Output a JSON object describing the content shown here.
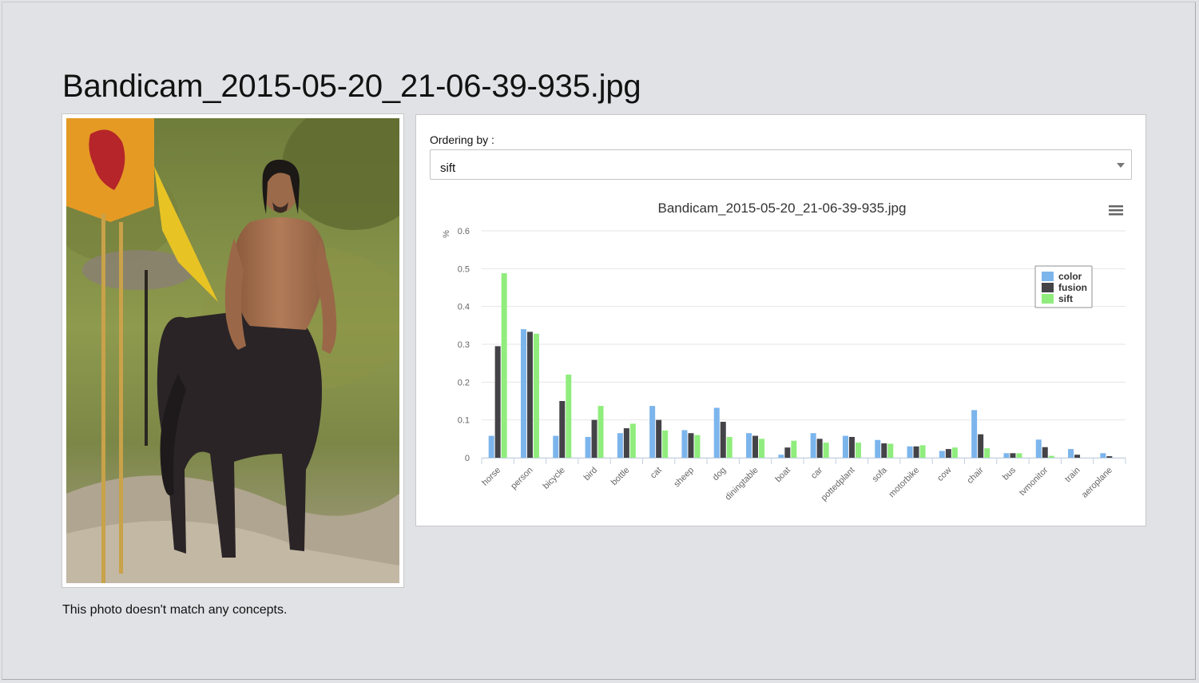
{
  "page": {
    "title": "Bandicam_2015-05-20_21-06-39-935.jpg",
    "no_match_text": "This photo doesn't match any concepts."
  },
  "photo": {
    "alt": "Bandicam_2015-05-20_21-06-39-935.jpg"
  },
  "ordering": {
    "label": "Ordering by :",
    "selected": "sift"
  },
  "chart_menu": {
    "icon": "hamburger-menu-icon"
  },
  "colors": {
    "color": "#7cb5ec",
    "fusion": "#434348",
    "sift": "#90ed7d",
    "grid": "#e6e6e6",
    "axis": "#c0d0e0"
  },
  "chart_data": {
    "type": "bar",
    "title": "Bandicam_2015-05-20_21-06-39-935.jpg",
    "xlabel": "",
    "ylabel": "%",
    "ylim": [
      0,
      0.6
    ],
    "yticks": [
      0,
      0.1,
      0.2,
      0.3,
      0.4,
      0.5,
      0.6
    ],
    "grid": true,
    "legend_position": "top-right",
    "categories": [
      "horse",
      "person",
      "bicycle",
      "bird",
      "bottle",
      "cat",
      "sheep",
      "dog",
      "diningtable",
      "boat",
      "car",
      "pottedplant",
      "sofa",
      "motorbike",
      "cow",
      "chair",
      "bus",
      "tvmonitor",
      "train",
      "aeroplane"
    ],
    "series": [
      {
        "name": "color",
        "color": "#7cb5ec",
        "values": [
          0.058,
          0.34,
          0.058,
          0.055,
          0.065,
          0.137,
          0.073,
          0.132,
          0.065,
          0.008,
          0.065,
          0.058,
          0.047,
          0.03,
          0.018,
          0.126,
          0.012,
          0.048,
          0.023,
          0.012
        ]
      },
      {
        "name": "fusion",
        "color": "#434348",
        "values": [
          0.295,
          0.333,
          0.15,
          0.1,
          0.078,
          0.1,
          0.065,
          0.095,
          0.058,
          0.027,
          0.05,
          0.055,
          0.038,
          0.03,
          0.023,
          0.062,
          0.012,
          0.028,
          0.008,
          0.004
        ]
      },
      {
        "name": "sift",
        "color": "#90ed7d",
        "values": [
          0.488,
          0.328,
          0.22,
          0.137,
          0.09,
          0.072,
          0.06,
          0.055,
          0.05,
          0.045,
          0.04,
          0.04,
          0.037,
          0.033,
          0.027,
          0.025,
          0.012,
          0.005,
          0.0,
          0.0
        ]
      }
    ]
  }
}
